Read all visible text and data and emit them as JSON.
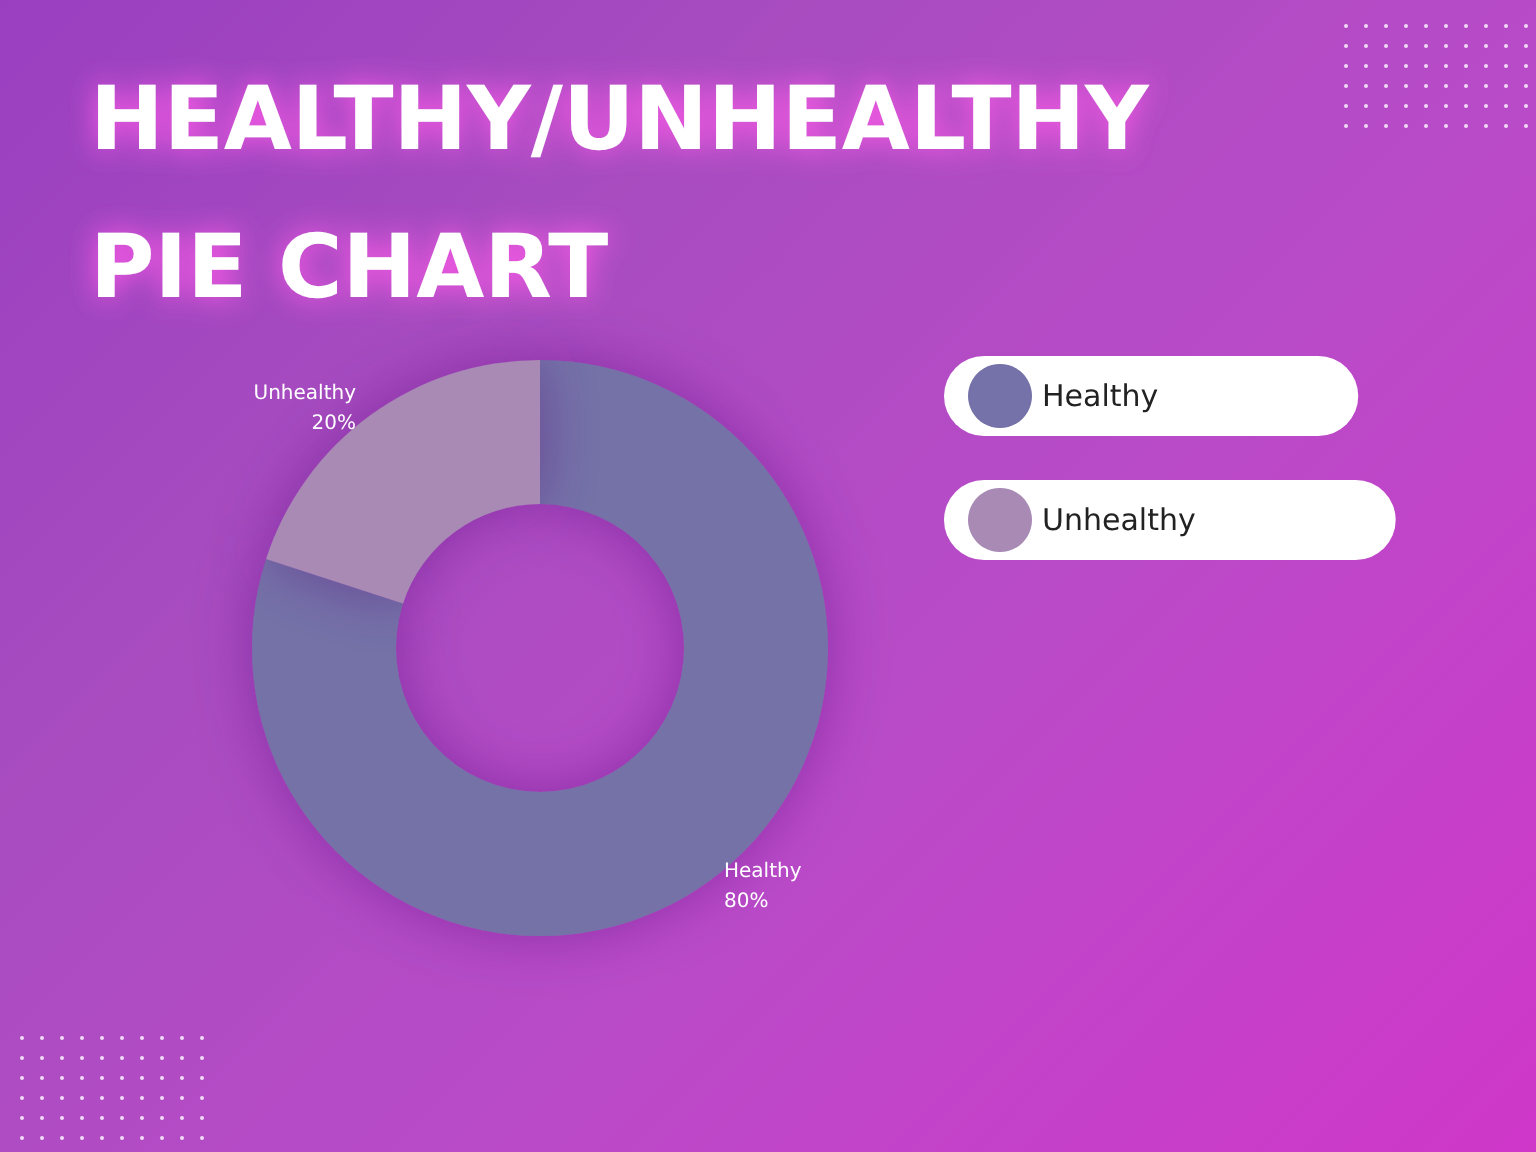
{
  "chart_data": {
    "type": "donut",
    "title": "HEALTHY/UNHEALTHY PIE CHART",
    "categories": [
      "Healthy",
      "Unhealthy"
    ],
    "values": [
      80,
      20
    ],
    "value_labels": [
      "80%",
      "20%"
    ],
    "colors": [
      "#7472a8",
      "#a98ab5"
    ],
    "legend": "top right"
  }
}
